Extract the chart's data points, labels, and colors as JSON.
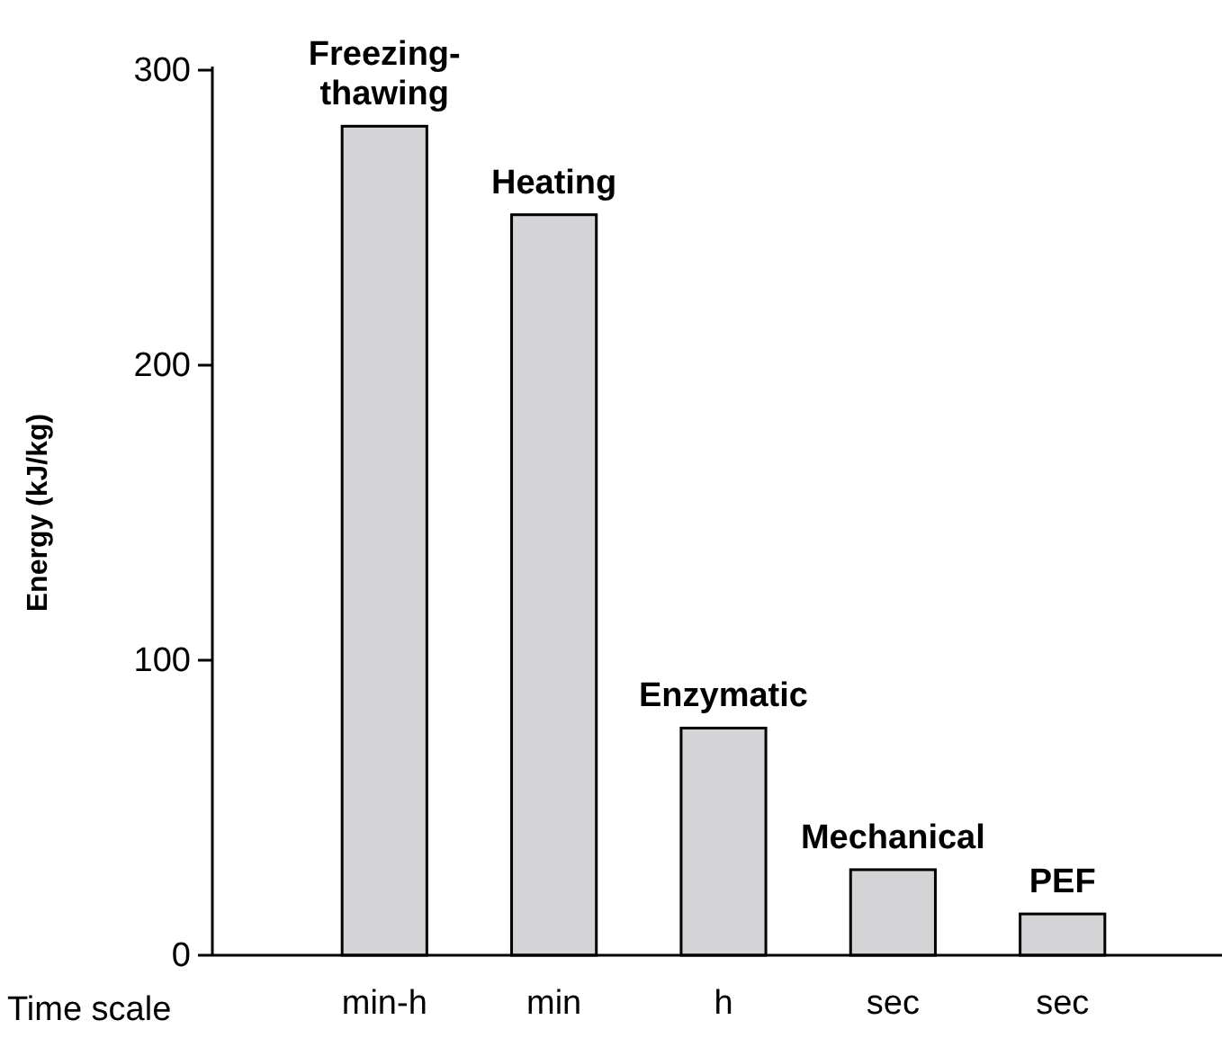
{
  "chart_data": {
    "type": "bar",
    "categories": [
      "min-h",
      "min",
      "h",
      "sec",
      "sec"
    ],
    "values": [
      281,
      251,
      77,
      29,
      14
    ],
    "color": "#d4d4d6",
    "ylim": [
      0,
      300
    ],
    "yticks": [
      0,
      100,
      200,
      300
    ],
    "ylabel": "Energy (kJ/kg)",
    "xlabel": "Time scale",
    "grid": false,
    "annotations": [
      "Freezing-thawing",
      "Heating",
      "Enzymatic",
      "Mechanical",
      "PEF"
    ]
  }
}
